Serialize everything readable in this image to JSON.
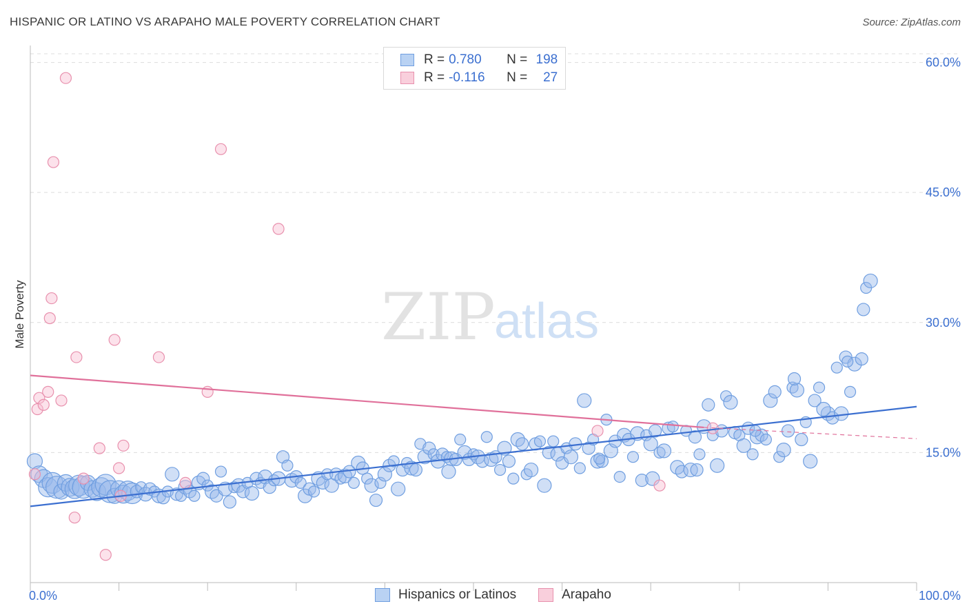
{
  "header": {
    "title": "HISPANIC OR LATINO VS ARAPAHO MALE POVERTY CORRELATION CHART",
    "source": "Source: ZipAtlas.com"
  },
  "watermark": {
    "zip": "ZIP",
    "atlas": "atlas"
  },
  "legend": {
    "rows": [
      {
        "r_label": "R =",
        "r_value": "0.780",
        "n_label": "N =",
        "n_value": "198",
        "color": "#a8c6f0",
        "border": "#6f9ee0"
      },
      {
        "r_label": "R =",
        "r_value": "-0.116",
        "n_label": "N =",
        "n_value": "27",
        "color": "#f8c4d4",
        "border": "#e890ad"
      }
    ]
  },
  "bottom_legend": [
    "Hispanics or Latinos",
    "Arapaho"
  ],
  "chart_data": {
    "type": "scatter",
    "xlabel": "",
    "ylabel": "Male Poverty",
    "xlim": [
      0,
      100
    ],
    "ylim": [
      0,
      61
    ],
    "x_tick_labels": [
      "0.0%",
      "100.0%"
    ],
    "y_ticks": [
      15,
      30,
      45,
      60
    ],
    "y_tick_labels": [
      "15.0%",
      "30.0%",
      "45.0%",
      "60.0%"
    ],
    "grid": true,
    "colors": {
      "blue": "#3b6fd0",
      "blue_fill": "rgba(150,185,235,0.45)",
      "blue_stroke": "#6f9ee0",
      "pink_line": "#e0709a",
      "pink_fill": "rgba(248,190,210,0.45)",
      "pink_stroke": "#e890ad"
    },
    "series": [
      {
        "name": "Hispanics or Latinos",
        "trend": {
          "x": [
            0,
            100
          ],
          "y": [
            8.8,
            20.3
          ]
        },
        "points": [
          [
            0.5,
            14
          ],
          [
            1,
            12.5
          ],
          [
            1.5,
            12
          ],
          [
            2,
            11
          ],
          [
            2.5,
            11.5
          ],
          [
            3,
            11
          ],
          [
            3.5,
            10.5
          ],
          [
            4,
            11.5
          ],
          [
            4.5,
            11
          ],
          [
            5,
            10.8
          ],
          [
            5.5,
            11.2
          ],
          [
            6,
            11
          ],
          [
            6.5,
            11.5
          ],
          [
            7,
            10.8
          ],
          [
            7.5,
            10.5
          ],
          [
            8,
            11
          ],
          [
            8.5,
            11.3
          ],
          [
            9,
            10.5
          ],
          [
            9.5,
            10
          ],
          [
            10,
            10.8
          ],
          [
            10.5,
            10.2
          ],
          [
            11,
            10.6
          ],
          [
            11.5,
            10.3
          ],
          [
            12,
            10.5
          ],
          [
            12.5,
            11
          ],
          [
            13,
            10.2
          ],
          [
            13.5,
            10.8
          ],
          [
            14,
            10.5
          ],
          [
            14.5,
            10
          ],
          [
            15,
            9.8
          ],
          [
            15.5,
            10.5
          ],
          [
            16,
            12.5
          ],
          [
            16.5,
            10.2
          ],
          [
            17,
            10
          ],
          [
            17.5,
            11
          ],
          [
            18,
            10.5
          ],
          [
            18.5,
            10
          ],
          [
            19,
            11.5
          ],
          [
            19.5,
            12
          ],
          [
            20,
            11.2
          ],
          [
            20.5,
            10.5
          ],
          [
            21,
            10
          ],
          [
            21.5,
            12.8
          ],
          [
            22,
            10.8
          ],
          [
            22.5,
            9.3
          ],
          [
            23,
            11
          ],
          [
            23.5,
            11.2
          ],
          [
            24,
            10.5
          ],
          [
            24.5,
            11.5
          ],
          [
            25,
            10.3
          ],
          [
            25.5,
            12
          ],
          [
            26,
            11.5
          ],
          [
            26.5,
            12.2
          ],
          [
            27,
            11
          ],
          [
            27.5,
            11.8
          ],
          [
            28,
            12
          ],
          [
            28.5,
            14.5
          ],
          [
            29,
            13.5
          ],
          [
            29.5,
            11.8
          ],
          [
            30,
            12.2
          ],
          [
            30.5,
            11.5
          ],
          [
            31,
            10
          ],
          [
            31.5,
            10.8
          ],
          [
            32,
            10.5
          ],
          [
            32.5,
            12
          ],
          [
            33,
            11.5
          ],
          [
            33.5,
            12.5
          ],
          [
            34,
            11.2
          ],
          [
            34.5,
            12.5
          ],
          [
            35,
            12
          ],
          [
            35.5,
            12.3
          ],
          [
            36,
            12.8
          ],
          [
            36.5,
            11.5
          ],
          [
            37,
            13.8
          ],
          [
            37.5,
            13.2
          ],
          [
            38,
            12
          ],
          [
            38.5,
            11.2
          ],
          [
            39,
            9.5
          ],
          [
            39.5,
            11.5
          ],
          [
            40,
            12.5
          ],
          [
            40.5,
            13.5
          ],
          [
            41,
            14
          ],
          [
            41.5,
            10.8
          ],
          [
            42,
            13
          ],
          [
            42.5,
            13.8
          ],
          [
            43,
            13.2
          ],
          [
            43.5,
            13
          ],
          [
            44,
            16
          ],
          [
            44.5,
            14.5
          ],
          [
            45,
            15.5
          ],
          [
            45.5,
            14.8
          ],
          [
            46,
            14
          ],
          [
            46.5,
            14.8
          ],
          [
            47,
            14.5
          ],
          [
            47.5,
            14.3
          ],
          [
            48,
            14.2
          ],
          [
            48.5,
            16.5
          ],
          [
            49,
            15
          ],
          [
            49.5,
            14.2
          ],
          [
            50,
            14.8
          ],
          [
            50.5,
            14.5
          ],
          [
            51,
            14
          ],
          [
            51.5,
            16.8
          ],
          [
            52,
            14.2
          ],
          [
            52.5,
            14.5
          ],
          [
            53,
            13
          ],
          [
            53.5,
            15.5
          ],
          [
            54,
            14
          ],
          [
            54.5,
            12
          ],
          [
            55,
            16.5
          ],
          [
            55.5,
            16
          ],
          [
            56,
            12.5
          ],
          [
            56.5,
            13
          ],
          [
            57,
            16
          ],
          [
            57.5,
            16.3
          ],
          [
            58,
            11.2
          ],
          [
            58.5,
            15
          ],
          [
            59,
            16.3
          ],
          [
            59.5,
            14.8
          ],
          [
            60,
            13.8
          ],
          [
            60.5,
            15.5
          ],
          [
            61,
            14.5
          ],
          [
            61.5,
            16
          ],
          [
            62,
            13.2
          ],
          [
            62.5,
            21
          ],
          [
            63,
            15.5
          ],
          [
            63.5,
            16.5
          ],
          [
            64,
            14
          ],
          [
            64.5,
            14
          ],
          [
            65,
            18.8
          ],
          [
            65.5,
            15.2
          ],
          [
            66,
            16.3
          ],
          [
            66.5,
            12.2
          ],
          [
            67,
            17
          ],
          [
            67.5,
            16.5
          ],
          [
            68,
            14.5
          ],
          [
            68.5,
            17.2
          ],
          [
            69,
            11.8
          ],
          [
            69.5,
            17
          ],
          [
            70,
            16
          ],
          [
            70.5,
            17.5
          ],
          [
            71,
            15
          ],
          [
            71.5,
            15.2
          ],
          [
            72,
            17.8
          ],
          [
            72.5,
            18
          ],
          [
            73,
            13.3
          ],
          [
            73.5,
            12.8
          ],
          [
            74,
            17.5
          ],
          [
            74.5,
            13
          ],
          [
            75,
            16.8
          ],
          [
            75.5,
            14.8
          ],
          [
            76,
            18
          ],
          [
            76.5,
            20.5
          ],
          [
            77,
            17
          ],
          [
            77.5,
            13.5
          ],
          [
            78,
            17.5
          ],
          [
            78.5,
            21.5
          ],
          [
            79,
            20.8
          ],
          [
            79.5,
            17.3
          ],
          [
            80,
            17
          ],
          [
            80.5,
            15.8
          ],
          [
            81,
            17.8
          ],
          [
            81.5,
            14.8
          ],
          [
            82,
            16.8
          ],
          [
            82.5,
            17
          ],
          [
            83,
            16.5
          ],
          [
            83.5,
            21
          ],
          [
            84,
            22
          ],
          [
            84.5,
            14.5
          ],
          [
            85,
            15.3
          ],
          [
            85.5,
            17.5
          ],
          [
            86,
            22.5
          ],
          [
            86.5,
            22.2
          ],
          [
            87,
            16.5
          ],
          [
            87.5,
            18.5
          ],
          [
            88,
            14
          ],
          [
            88.5,
            21
          ],
          [
            89,
            22.5
          ],
          [
            90,
            19.5
          ],
          [
            90.5,
            19
          ],
          [
            91,
            24.8
          ],
          [
            91.5,
            19.5
          ],
          [
            92,
            26
          ],
          [
            92.5,
            22
          ],
          [
            93,
            25.2
          ],
          [
            94,
            31.5
          ],
          [
            94.3,
            34
          ],
          [
            94.8,
            34.8
          ],
          [
            93.8,
            25.8
          ],
          [
            92.2,
            25.5
          ],
          [
            89.5,
            20
          ],
          [
            86.2,
            23.5
          ],
          [
            81.8,
            17.5
          ],
          [
            70.2,
            12
          ],
          [
            75.2,
            13
          ],
          [
            64.2,
            14.3
          ],
          [
            47.2,
            12.8
          ]
        ]
      },
      {
        "name": "Arapaho",
        "trend": {
          "x": [
            0,
            76
          ],
          "y": [
            23.9,
            17.9
          ]
        },
        "trend_dashed": {
          "x": [
            76,
            100
          ],
          "y": [
            17.9,
            16.6
          ]
        },
        "points": [
          [
            0.5,
            12.5
          ],
          [
            0.8,
            20
          ],
          [
            1,
            21.3
          ],
          [
            1.5,
            20.5
          ],
          [
            2,
            22
          ],
          [
            2.2,
            30.5
          ],
          [
            2.4,
            32.8
          ],
          [
            2.6,
            48.5
          ],
          [
            3.5,
            21
          ],
          [
            4,
            58.2
          ],
          [
            5,
            7.5
          ],
          [
            5.2,
            26
          ],
          [
            6,
            12
          ],
          [
            7.8,
            15.5
          ],
          [
            8.5,
            3.2
          ],
          [
            9.5,
            28
          ],
          [
            10,
            13.2
          ],
          [
            10.2,
            10
          ],
          [
            10.5,
            15.8
          ],
          [
            14.5,
            26
          ],
          [
            17.5,
            11.5
          ],
          [
            20,
            22
          ],
          [
            21.5,
            50
          ],
          [
            28,
            40.8
          ],
          [
            64,
            17.5
          ],
          [
            71,
            11.2
          ],
          [
            77,
            17.8
          ]
        ]
      }
    ]
  }
}
